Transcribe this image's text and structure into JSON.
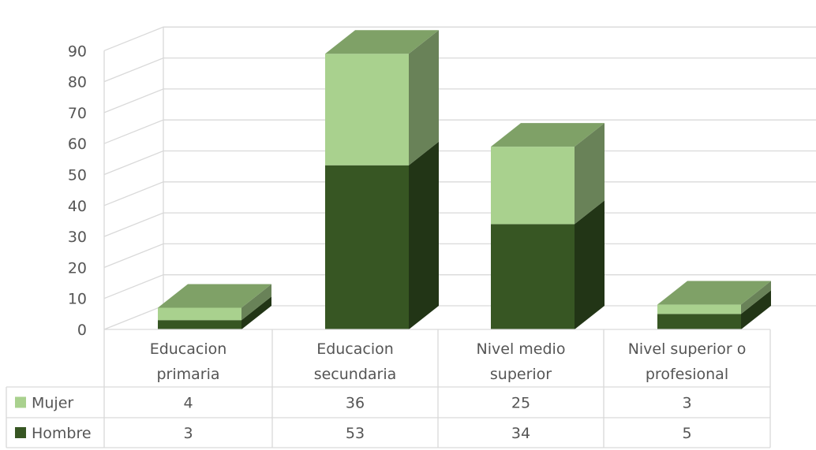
{
  "chart_data": {
    "type": "bar",
    "stacked": true,
    "style": "3d-stacked-column-with-data-table",
    "categories": [
      [
        "Educacion",
        "primaria"
      ],
      [
        "Educacion",
        "secundaria"
      ],
      [
        "Nivel medio",
        "superior"
      ],
      [
        "Nivel superior o",
        "profesional"
      ]
    ],
    "series": [
      {
        "name": "Hombre",
        "values": [
          3,
          53,
          34,
          5
        ],
        "color": "#375623"
      },
      {
        "name": "Mujer",
        "values": [
          4,
          36,
          25,
          3
        ],
        "color": "#a9d18e"
      }
    ],
    "table_rows": [
      {
        "label": "Mujer",
        "values": [
          "4",
          "36",
          "25",
          "3"
        ]
      },
      {
        "label": "Hombre",
        "values": [
          "3",
          "53",
          "34",
          "5"
        ]
      }
    ],
    "yticks": [
      "0",
      "10",
      "20",
      "30",
      "40",
      "50",
      "60",
      "70",
      "80",
      "90"
    ],
    "ylim": [
      0,
      90
    ],
    "grid": true,
    "legend": "data-table"
  }
}
